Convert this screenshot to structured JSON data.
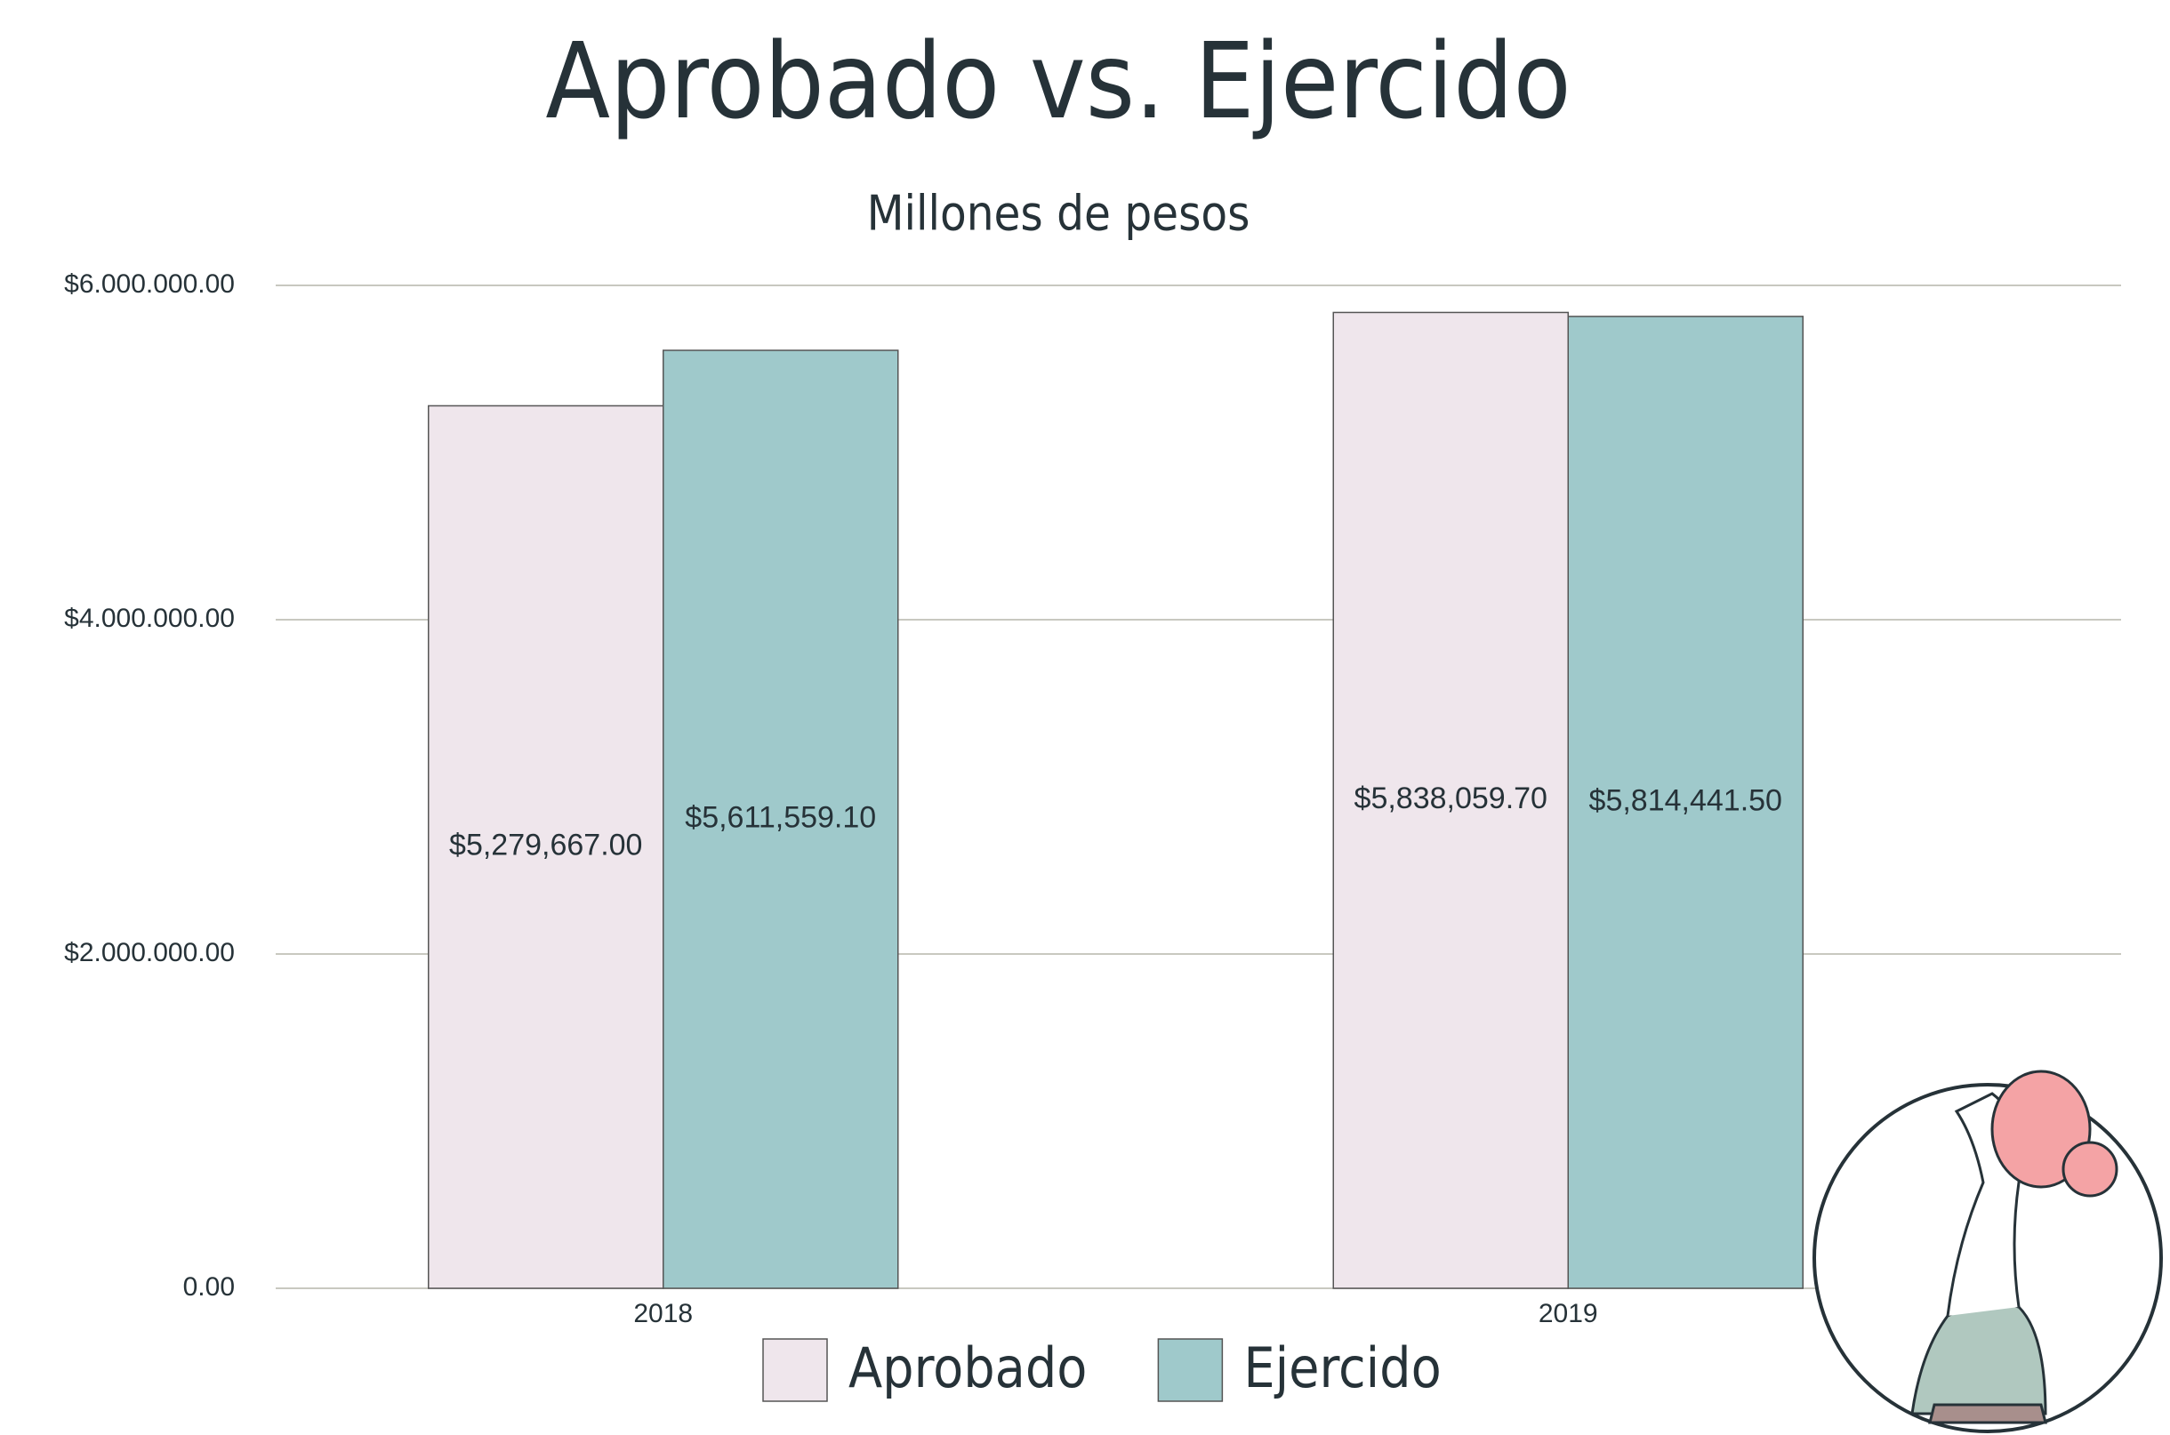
{
  "chart_data": {
    "type": "bar",
    "title": "Aprobado vs. Ejercido",
    "subtitle": "Millones de pesos",
    "categories": [
      "2018",
      "2019"
    ],
    "series": [
      {
        "name": "Aprobado",
        "color": "#efe6ec",
        "values": [
          5279667.0,
          5838059.7
        ],
        "value_labels": [
          "$5,279,667.00",
          "$5,838,059.70"
        ]
      },
      {
        "name": "Ejercido",
        "color": "#9fc9cb",
        "values": [
          5611559.1,
          5814441.5
        ],
        "value_labels": [
          "$5,611,559.10",
          "$5,814,441.50"
        ]
      }
    ],
    "ylim": [
      0,
      6000000
    ],
    "yticks": [
      {
        "value": 0,
        "label": "0.00"
      },
      {
        "value": 2000000,
        "label": "$2.000.000.00"
      },
      {
        "value": 4000000,
        "label": "$4.000.000.00"
      },
      {
        "value": 6000000,
        "label": "$6.000.000.00"
      }
    ],
    "grid": true,
    "legend": "bottom"
  }
}
